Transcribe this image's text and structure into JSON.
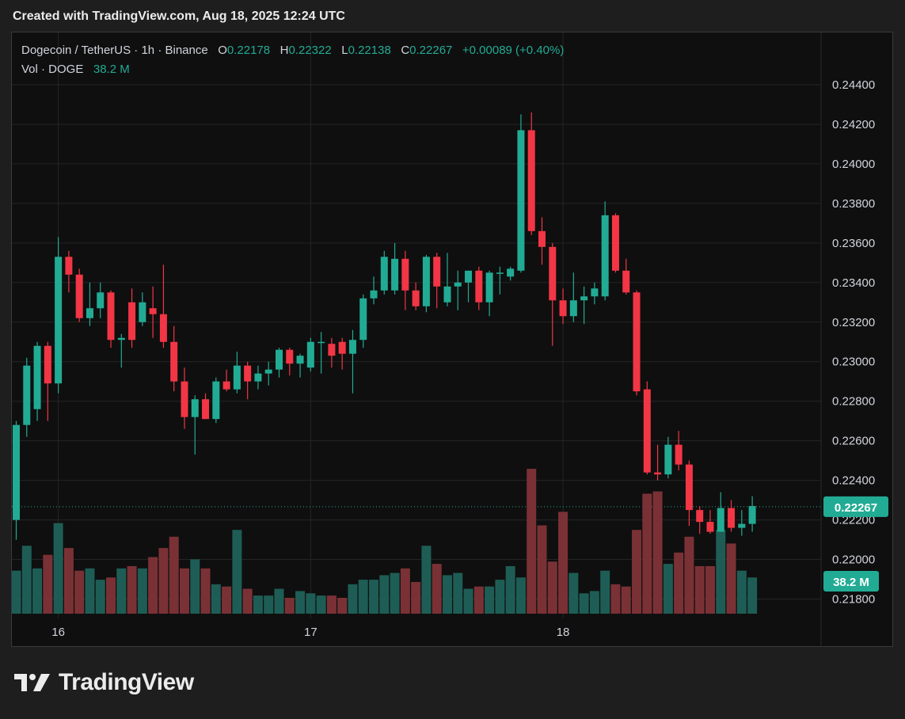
{
  "caption": "Created with TradingView.com, Aug 18, 2025 12:24 UTC",
  "brand": "TradingView",
  "legend": {
    "symbol": "Dogecoin / TetherUS · 1h · Binance",
    "o_label": "O",
    "o": "0.22178",
    "h_label": "H",
    "h": "0.22322",
    "l_label": "L",
    "l": "0.22138",
    "c_label": "C",
    "c": "0.22267",
    "change": "+0.00089 (+0.40%)",
    "vol_label": "Vol · DOGE",
    "vol": "38.2 M"
  },
  "colors": {
    "up": "#22ab94",
    "down": "#f23645",
    "vol_up": "#1e5d55",
    "vol_down": "#7a3135",
    "grid": "#252525"
  },
  "chart_data": {
    "type": "candlestick",
    "price_ticks": [
      "0.24400",
      "0.24200",
      "0.24000",
      "0.23800",
      "0.23600",
      "0.23400",
      "0.23200",
      "0.23000",
      "0.22800",
      "0.22600",
      "0.22400",
      "0.22200",
      "0.22000",
      "0.21800"
    ],
    "ylim": [
      0.2175,
      0.2452
    ],
    "x_ticks": [
      {
        "index": 4,
        "label": "16"
      },
      {
        "index": 28,
        "label": "17"
      },
      {
        "index": 52,
        "label": "18"
      }
    ],
    "last_price_label": "0.22267",
    "last_price": 0.22267,
    "volume_label": "38.2 M",
    "candles": [
      {
        "o": 0.222,
        "h": 0.227,
        "l": 0.221,
        "c": 0.2268,
        "v": 19
      },
      {
        "o": 0.2268,
        "h": 0.2302,
        "l": 0.2262,
        "c": 0.2298,
        "v": 30
      },
      {
        "o": 0.2276,
        "h": 0.231,
        "l": 0.227,
        "c": 0.2308,
        "v": 20
      },
      {
        "o": 0.2308,
        "h": 0.231,
        "l": 0.227,
        "c": 0.2289,
        "v": 26
      },
      {
        "o": 0.2289,
        "h": 0.2363,
        "l": 0.2284,
        "c": 0.2353,
        "v": 40
      },
      {
        "o": 0.2353,
        "h": 0.2356,
        "l": 0.2335,
        "c": 0.2344,
        "v": 29
      },
      {
        "o": 0.2344,
        "h": 0.2347,
        "l": 0.232,
        "c": 0.2322,
        "v": 19
      },
      {
        "o": 0.2322,
        "h": 0.234,
        "l": 0.2318,
        "c": 0.2327,
        "v": 20
      },
      {
        "o": 0.2327,
        "h": 0.234,
        "l": 0.2322,
        "c": 0.2335,
        "v": 15
      },
      {
        "o": 0.2335,
        "h": 0.2336,
        "l": 0.2307,
        "c": 0.2311,
        "v": 16
      },
      {
        "o": 0.2311,
        "h": 0.2314,
        "l": 0.2297,
        "c": 0.2312,
        "v": 20
      },
      {
        "o": 0.233,
        "h": 0.2337,
        "l": 0.2307,
        "c": 0.2311,
        "v": 21
      },
      {
        "o": 0.232,
        "h": 0.2335,
        "l": 0.2318,
        "c": 0.233,
        "v": 20
      },
      {
        "o": 0.2327,
        "h": 0.2338,
        "l": 0.2312,
        "c": 0.2324,
        "v": 25
      },
      {
        "o": 0.2324,
        "h": 0.2349,
        "l": 0.2307,
        "c": 0.231,
        "v": 29
      },
      {
        "o": 0.231,
        "h": 0.2318,
        "l": 0.2285,
        "c": 0.229,
        "v": 34
      },
      {
        "o": 0.229,
        "h": 0.2297,
        "l": 0.2266,
        "c": 0.2272,
        "v": 20
      },
      {
        "o": 0.2272,
        "h": 0.2283,
        "l": 0.2253,
        "c": 0.2281,
        "v": 24
      },
      {
        "o": 0.2281,
        "h": 0.2284,
        "l": 0.2271,
        "c": 0.2271,
        "v": 20
      },
      {
        "o": 0.2271,
        "h": 0.2292,
        "l": 0.2269,
        "c": 0.229,
        "v": 13
      },
      {
        "o": 0.229,
        "h": 0.2296,
        "l": 0.2285,
        "c": 0.2286,
        "v": 12
      },
      {
        "o": 0.2286,
        "h": 0.2305,
        "l": 0.2284,
        "c": 0.2298,
        "v": 37
      },
      {
        "o": 0.2298,
        "h": 0.23,
        "l": 0.2281,
        "c": 0.229,
        "v": 11
      },
      {
        "o": 0.229,
        "h": 0.2298,
        "l": 0.2286,
        "c": 0.2294,
        "v": 8
      },
      {
        "o": 0.2294,
        "h": 0.23,
        "l": 0.2288,
        "c": 0.2296,
        "v": 8
      },
      {
        "o": 0.2296,
        "h": 0.2307,
        "l": 0.2292,
        "c": 0.2306,
        "v": 11
      },
      {
        "o": 0.2306,
        "h": 0.2307,
        "l": 0.2293,
        "c": 0.2299,
        "v": 7
      },
      {
        "o": 0.2299,
        "h": 0.2304,
        "l": 0.2292,
        "c": 0.2303,
        "v": 10
      },
      {
        "o": 0.2297,
        "h": 0.2312,
        "l": 0.2295,
        "c": 0.231,
        "v": 9
      },
      {
        "o": 0.231,
        "h": 0.2315,
        "l": 0.2294,
        "c": 0.231,
        "v": 8
      },
      {
        "o": 0.2309,
        "h": 0.2312,
        "l": 0.2297,
        "c": 0.2303,
        "v": 8
      },
      {
        "o": 0.231,
        "h": 0.2312,
        "l": 0.2296,
        "c": 0.2304,
        "v": 7
      },
      {
        "o": 0.2304,
        "h": 0.2316,
        "l": 0.2284,
        "c": 0.2311,
        "v": 13
      },
      {
        "o": 0.2311,
        "h": 0.2334,
        "l": 0.2307,
        "c": 0.2332,
        "v": 15
      },
      {
        "o": 0.2332,
        "h": 0.2343,
        "l": 0.2329,
        "c": 0.2336,
        "v": 15
      },
      {
        "o": 0.2336,
        "h": 0.2356,
        "l": 0.2334,
        "c": 0.2353,
        "v": 17
      },
      {
        "o": 0.2336,
        "h": 0.236,
        "l": 0.2334,
        "c": 0.2352,
        "v": 18
      },
      {
        "o": 0.2352,
        "h": 0.2356,
        "l": 0.2326,
        "c": 0.2336,
        "v": 20
      },
      {
        "o": 0.2336,
        "h": 0.234,
        "l": 0.2326,
        "c": 0.2328,
        "v": 14
      },
      {
        "o": 0.2328,
        "h": 0.2354,
        "l": 0.2325,
        "c": 0.2353,
        "v": 30
      },
      {
        "o": 0.2353,
        "h": 0.2355,
        "l": 0.2327,
        "c": 0.2338,
        "v": 22
      },
      {
        "o": 0.233,
        "h": 0.2355,
        "l": 0.2328,
        "c": 0.2338,
        "v": 17
      },
      {
        "o": 0.2338,
        "h": 0.2346,
        "l": 0.2326,
        "c": 0.234,
        "v": 18
      },
      {
        "o": 0.234,
        "h": 0.2346,
        "l": 0.233,
        "c": 0.2346,
        "v": 11
      },
      {
        "o": 0.2346,
        "h": 0.2348,
        "l": 0.2326,
        "c": 0.233,
        "v": 12
      },
      {
        "o": 0.233,
        "h": 0.2346,
        "l": 0.2323,
        "c": 0.2345,
        "v": 12
      },
      {
        "o": 0.2345,
        "h": 0.2348,
        "l": 0.2334,
        "c": 0.2345,
        "v": 15
      },
      {
        "o": 0.2343,
        "h": 0.2348,
        "l": 0.2341,
        "c": 0.2347,
        "v": 21
      },
      {
        "o": 0.2346,
        "h": 0.2425,
        "l": 0.2345,
        "c": 0.2417,
        "v": 16
      },
      {
        "o": 0.2417,
        "h": 0.2426,
        "l": 0.2364,
        "c": 0.2366,
        "v": 64
      },
      {
        "o": 0.2366,
        "h": 0.2373,
        "l": 0.2349,
        "c": 0.2358,
        "v": 39
      },
      {
        "o": 0.2358,
        "h": 0.236,
        "l": 0.2308,
        "c": 0.2331,
        "v": 23
      },
      {
        "o": 0.2331,
        "h": 0.2337,
        "l": 0.2319,
        "c": 0.2323,
        "v": 45
      },
      {
        "o": 0.2323,
        "h": 0.2345,
        "l": 0.232,
        "c": 0.2331,
        "v": 18
      },
      {
        "o": 0.2331,
        "h": 0.2338,
        "l": 0.2319,
        "c": 0.2333,
        "v": 9
      },
      {
        "o": 0.2333,
        "h": 0.234,
        "l": 0.2329,
        "c": 0.2337,
        "v": 10
      },
      {
        "o": 0.2333,
        "h": 0.2381,
        "l": 0.2331,
        "c": 0.2374,
        "v": 19
      },
      {
        "o": 0.2374,
        "h": 0.2375,
        "l": 0.2345,
        "c": 0.2346,
        "v": 13
      },
      {
        "o": 0.2346,
        "h": 0.2352,
        "l": 0.2334,
        "c": 0.2335,
        "v": 12
      },
      {
        "o": 0.2335,
        "h": 0.2336,
        "l": 0.2283,
        "c": 0.2285,
        "v": 37
      },
      {
        "o": 0.2286,
        "h": 0.229,
        "l": 0.2243,
        "c": 0.2244,
        "v": 53
      },
      {
        "o": 0.2244,
        "h": 0.2258,
        "l": 0.224,
        "c": 0.2243,
        "v": 54
      },
      {
        "o": 0.2243,
        "h": 0.2262,
        "l": 0.2241,
        "c": 0.2258,
        "v": 22
      },
      {
        "o": 0.2258,
        "h": 0.2265,
        "l": 0.2245,
        "c": 0.2248,
        "v": 27
      },
      {
        "o": 0.2248,
        "h": 0.225,
        "l": 0.2217,
        "c": 0.2225,
        "v": 34
      },
      {
        "o": 0.2225,
        "h": 0.2227,
        "l": 0.2213,
        "c": 0.2219,
        "v": 21
      },
      {
        "o": 0.2219,
        "h": 0.2225,
        "l": 0.2213,
        "c": 0.2214,
        "v": 21
      },
      {
        "o": 0.2214,
        "h": 0.2234,
        "l": 0.2214,
        "c": 0.2226,
        "v": 37
      },
      {
        "o": 0.2226,
        "h": 0.223,
        "l": 0.2214,
        "c": 0.2216,
        "v": 31
      },
      {
        "o": 0.2216,
        "h": 0.2225,
        "l": 0.2212,
        "c": 0.2218,
        "v": 19
      },
      {
        "o": 0.2218,
        "h": 0.2232,
        "l": 0.2214,
        "c": 0.2227,
        "v": 16
      }
    ]
  }
}
